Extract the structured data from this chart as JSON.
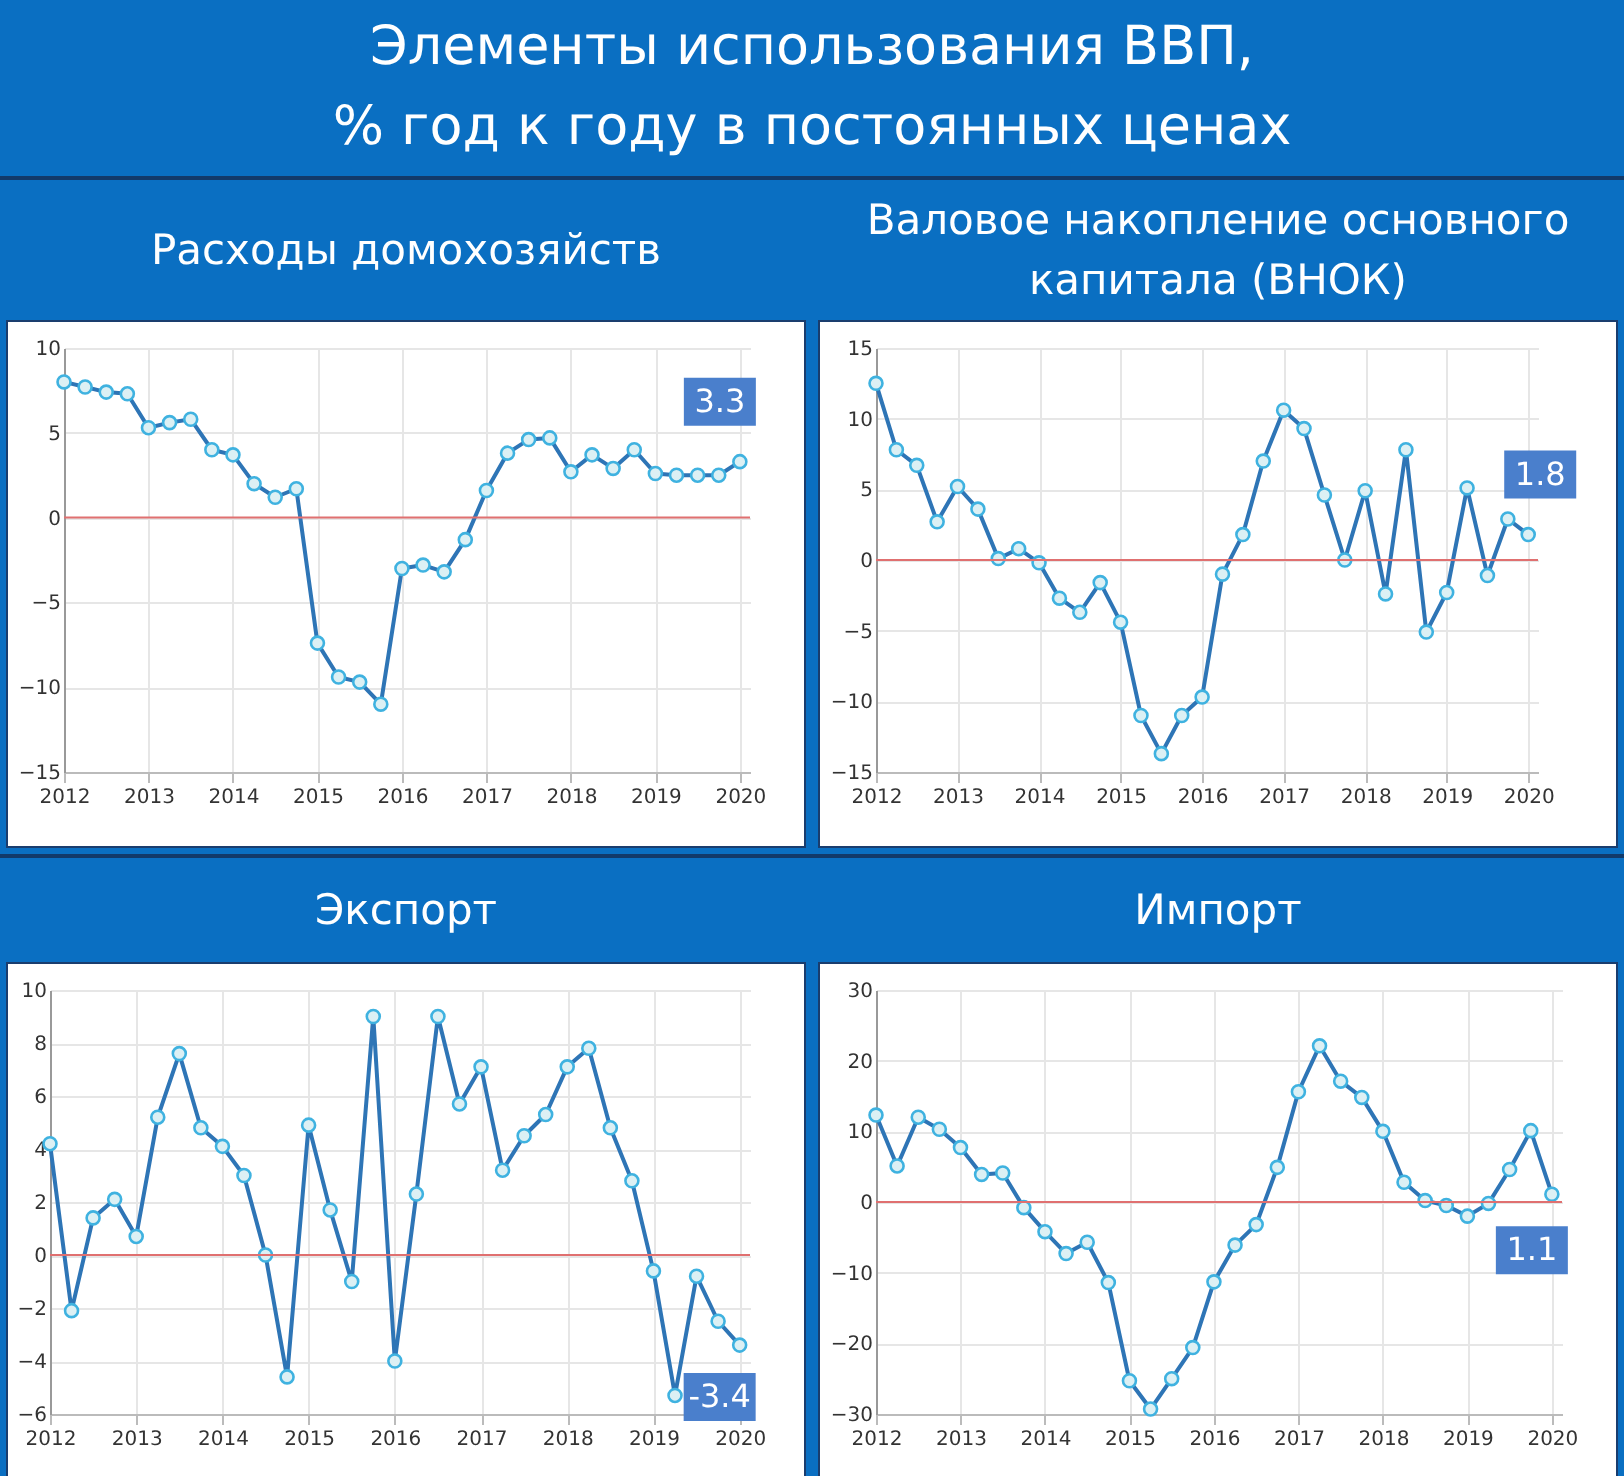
{
  "chart_data": [
    {
      "type": "line",
      "title": "Расходы домохозяйств",
      "annotations": [
        "Элементы использования ВВП,\n% год к году в постоянных ценах"
      ],
      "x": [
        2012,
        2012.25,
        2012.5,
        2012.75,
        2013,
        2013.25,
        2013.5,
        2013.75,
        2014,
        2014.25,
        2014.5,
        2014.75,
        2015,
        2015.25,
        2015.5,
        2015.75,
        2016,
        2016.25,
        2016.5,
        2016.75,
        2017,
        2017.25,
        2017.5,
        2017.75,
        2018,
        2018.25,
        2018.5,
        2018.75,
        2019,
        2019.25,
        2019.5,
        2019.75,
        2020
      ],
      "series": [
        {
          "color": "#2e75b6",
          "values": [
            8.0,
            7.7,
            7.4,
            7.3,
            5.3,
            5.6,
            5.8,
            4.0,
            3.7,
            2.0,
            1.2,
            1.7,
            -7.4,
            -9.4,
            -9.7,
            -11.0,
            -3.0,
            -2.8,
            -3.2,
            -1.3,
            1.6,
            3.8,
            4.6,
            4.7,
            2.7,
            3.7,
            2.9,
            4.0,
            2.6,
            2.5,
            2.5,
            2.5,
            3.3
          ],
          "value_labels": [
            null,
            null,
            null,
            null,
            null,
            null,
            null,
            null,
            null,
            null,
            null,
            null,
            null,
            null,
            null,
            null,
            null,
            null,
            null,
            null,
            null,
            null,
            null,
            null,
            null,
            null,
            null,
            null,
            null,
            null,
            null,
            null,
            "3.3"
          ]
        }
      ],
      "xlim": [
        2012,
        2020.12
      ],
      "xticks": [
        2012,
        2013,
        2014,
        2015,
        2016,
        2017,
        2018,
        2019,
        2020
      ],
      "ylim": [
        -15,
        10
      ],
      "yticks": [
        -15,
        -10,
        -5,
        0,
        5,
        10
      ],
      "grid": true,
      "marker": "circle",
      "ref_lines": [
        {
          "axis": "y",
          "value": 0,
          "color": "#e07070"
        }
      ]
    },
    {
      "type": "line",
      "title": "Валовое накопление основного капитала (ВНОК)",
      "x": [
        2012,
        2012.25,
        2012.5,
        2012.75,
        2013,
        2013.25,
        2013.5,
        2013.75,
        2014,
        2014.25,
        2014.5,
        2014.75,
        2015,
        2015.25,
        2015.5,
        2015.75,
        2016,
        2016.25,
        2016.5,
        2016.75,
        2017,
        2017.25,
        2017.5,
        2017.75,
        2018,
        2018.25,
        2018.5,
        2018.75,
        2019,
        2019.25,
        2019.5,
        2019.75,
        2020
      ],
      "series": [
        {
          "color": "#2e75b6",
          "values": [
            12.5,
            7.8,
            6.7,
            2.7,
            5.2,
            3.6,
            0.1,
            0.8,
            -0.2,
            -2.7,
            -3.7,
            -1.6,
            -4.4,
            -11.0,
            -13.7,
            -11.0,
            -9.7,
            -1.0,
            1.8,
            7.0,
            10.6,
            9.3,
            4.6,
            0.0,
            4.9,
            -2.4,
            7.8,
            -5.1,
            -2.3,
            5.1,
            -1.1,
            2.9,
            1.8
          ],
          "value_labels": [
            null,
            null,
            null,
            null,
            null,
            null,
            null,
            null,
            null,
            null,
            null,
            null,
            null,
            null,
            null,
            null,
            null,
            null,
            null,
            null,
            null,
            null,
            null,
            null,
            null,
            null,
            null,
            null,
            null,
            null,
            null,
            null,
            "1.8"
          ]
        }
      ],
      "xlim": [
        2012,
        2020.12
      ],
      "xticks": [
        2012,
        2013,
        2014,
        2015,
        2016,
        2017,
        2018,
        2019,
        2020
      ],
      "ylim": [
        -15,
        15
      ],
      "yticks": [
        -15,
        -10,
        -5,
        0,
        5,
        10,
        15
      ],
      "grid": true,
      "marker": "circle",
      "ref_lines": [
        {
          "axis": "y",
          "value": 0,
          "color": "#e07070"
        }
      ]
    },
    {
      "type": "line",
      "title": "Экспорт",
      "x": [
        2012,
        2012.25,
        2012.5,
        2012.75,
        2013,
        2013.25,
        2013.5,
        2013.75,
        2014,
        2014.25,
        2014.5,
        2014.75,
        2015,
        2015.25,
        2015.5,
        2015.75,
        2016,
        2016.25,
        2016.5,
        2016.75,
        2017,
        2017.25,
        2017.5,
        2017.75,
        2018,
        2018.25,
        2018.5,
        2018.75,
        2019,
        2019.25,
        2019.5,
        2019.75,
        2020
      ],
      "series": [
        {
          "color": "#2e75b6",
          "values": [
            4.2,
            -2.1,
            1.4,
            2.1,
            0.7,
            5.2,
            7.6,
            4.8,
            4.1,
            3.0,
            0.0,
            -4.6,
            4.9,
            1.7,
            -1.0,
            9.0,
            -4.0,
            2.3,
            9.0,
            5.7,
            7.1,
            3.2,
            4.5,
            5.3,
            7.1,
            7.8,
            4.8,
            2.8,
            -0.6,
            -5.3,
            -0.8,
            -2.5,
            -3.4
          ],
          "value_labels": [
            null,
            null,
            null,
            null,
            null,
            null,
            null,
            null,
            null,
            null,
            null,
            null,
            null,
            null,
            null,
            null,
            null,
            null,
            null,
            null,
            null,
            null,
            null,
            null,
            null,
            null,
            null,
            null,
            null,
            null,
            null,
            null,
            "-3.4"
          ]
        }
      ],
      "xlim": [
        2012,
        2020.12
      ],
      "xticks": [
        2012,
        2013,
        2014,
        2015,
        2016,
        2017,
        2018,
        2019,
        2020
      ],
      "ylim": [
        -6,
        10
      ],
      "yticks": [
        -6,
        -4,
        -2,
        0,
        2,
        4,
        6,
        8,
        10
      ],
      "grid": true,
      "marker": "circle",
      "ref_lines": [
        {
          "axis": "y",
          "value": 0,
          "color": "#e07070"
        }
      ]
    },
    {
      "type": "line",
      "title": "Импорт",
      "x": [
        2012,
        2012.25,
        2012.5,
        2012.75,
        2013,
        2013.25,
        2013.5,
        2013.75,
        2014,
        2014.25,
        2014.5,
        2014.75,
        2015,
        2015.25,
        2015.5,
        2015.75,
        2016,
        2016.25,
        2016.5,
        2016.75,
        2017,
        2017.25,
        2017.5,
        2017.75,
        2018,
        2018.25,
        2018.5,
        2018.75,
        2019,
        2019.25,
        2019.5,
        2019.75,
        2020
      ],
      "series": [
        {
          "color": "#2e75b6",
          "values": [
            12.3,
            5.1,
            12.0,
            10.3,
            7.7,
            3.9,
            4.1,
            -0.8,
            -4.2,
            -7.3,
            -5.7,
            -11.4,
            -25.3,
            -29.3,
            -25.0,
            -20.6,
            -11.3,
            -6.1,
            -3.2,
            4.9,
            15.6,
            22.1,
            17.1,
            14.8,
            10.0,
            2.8,
            0.2,
            -0.5,
            -2.0,
            -0.2,
            4.6,
            10.1,
            1.1
          ],
          "value_labels": [
            null,
            null,
            null,
            null,
            null,
            null,
            null,
            null,
            null,
            null,
            null,
            null,
            null,
            null,
            null,
            null,
            null,
            null,
            null,
            null,
            null,
            null,
            null,
            null,
            null,
            null,
            null,
            null,
            null,
            null,
            null,
            null,
            "1.1"
          ]
        }
      ],
      "xlim": [
        2012,
        2020.12
      ],
      "xticks": [
        2012,
        2013,
        2014,
        2015,
        2016,
        2017,
        2018,
        2019,
        2020
      ],
      "ylim": [
        -30,
        30
      ],
      "yticks": [
        -30,
        -20,
        -10,
        0,
        10,
        20,
        30
      ],
      "grid": true,
      "marker": "circle",
      "ref_lines": [
        {
          "axis": "y",
          "value": 0,
          "color": "#e07070"
        }
      ]
    }
  ]
}
